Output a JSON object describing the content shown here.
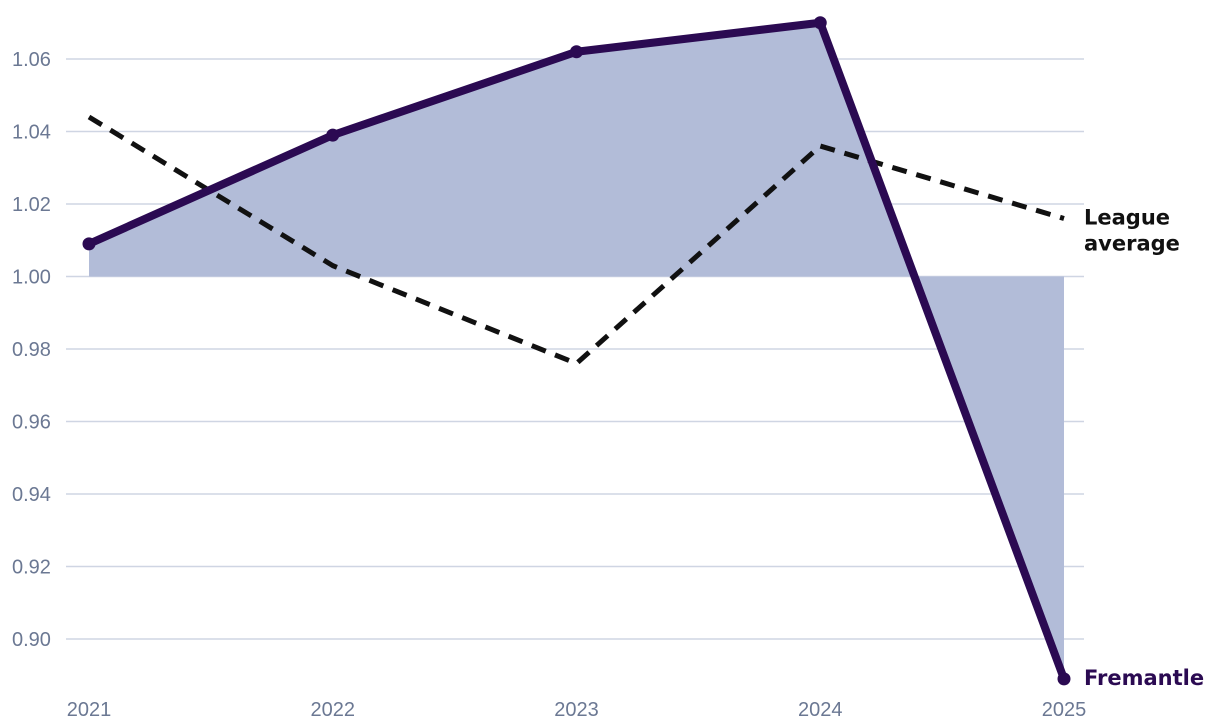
{
  "chart_data": {
    "type": "line",
    "title": "",
    "xlabel": "",
    "ylabel": "",
    "x": [
      "2021",
      "2022",
      "2023",
      "2024",
      "2025"
    ],
    "y_ticks": [
      "1.06",
      "1.04",
      "1.02",
      "1.00",
      "0.98",
      "0.96",
      "0.94",
      "0.92",
      "0.90"
    ],
    "ylim": [
      0.885,
      1.073
    ],
    "baseline": 1.0,
    "grid": true,
    "series": [
      {
        "name": "Fremantle",
        "values": [
          1.009,
          1.039,
          1.062,
          1.07,
          0.889
        ],
        "style": "solid-with-markers",
        "color": "#2b0a52",
        "fill_to_baseline": true,
        "fill_color": "#b2bcd8"
      },
      {
        "name": "League average",
        "label_lines": [
          "League",
          "average"
        ],
        "values": [
          1.044,
          1.003,
          0.976,
          1.036,
          1.016
        ],
        "style": "dashed",
        "color": "#111111"
      }
    ],
    "colors": {
      "grid": "#cfd5e3",
      "tick_text": "#6b7893"
    }
  }
}
